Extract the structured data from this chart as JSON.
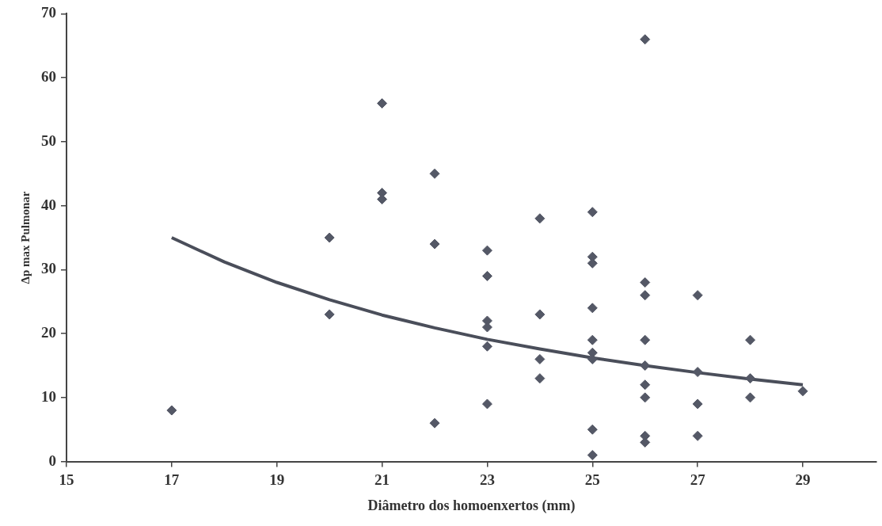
{
  "chart_data": {
    "type": "scatter",
    "xlabel": "Diâmetro dos homoenxertos (mm)",
    "ylabel": "Δp max Pulmonar",
    "xlim": [
      15,
      30.4
    ],
    "xticks": [
      15,
      17,
      19,
      21,
      23,
      25,
      27,
      29
    ],
    "ylim": [
      0,
      70
    ],
    "yticks": [
      0,
      10,
      20,
      30,
      40,
      50,
      60,
      70
    ],
    "grid": false,
    "legend": false,
    "series": [
      {
        "type": "scatter",
        "color": "#545866",
        "marker": "diamond",
        "x": [
          17,
          20,
          20,
          21,
          21,
          21,
          22,
          22,
          22,
          23,
          23,
          23,
          23,
          23,
          23,
          24,
          24,
          24,
          24,
          25,
          25,
          25,
          25,
          25,
          25,
          25,
          25,
          25,
          26,
          26,
          26,
          26,
          26,
          26,
          26,
          26,
          26,
          27,
          27,
          27,
          27,
          28,
          28,
          28,
          29
        ],
        "values": [
          8,
          35,
          23,
          56,
          42,
          41,
          45,
          34,
          6,
          33,
          29,
          22,
          21,
          18,
          9,
          38,
          23,
          16,
          13,
          39,
          32,
          31,
          24,
          19,
          17,
          16,
          5,
          1,
          66,
          28,
          26,
          19,
          15,
          12,
          10,
          4,
          3,
          26,
          14,
          9,
          4,
          19,
          13,
          10,
          11
        ]
      },
      {
        "type": "line",
        "color": "#4a4e5a",
        "marker": "none",
        "line_style": "solid",
        "x": [
          17,
          18,
          19,
          20,
          21,
          22,
          23,
          24,
          25,
          26,
          27,
          28,
          29
        ],
        "values": [
          35,
          31.2,
          28,
          25.3,
          22.9,
          20.9,
          19.1,
          17.6,
          16.2,
          15,
          13.9,
          12.9,
          12
        ]
      }
    ]
  }
}
